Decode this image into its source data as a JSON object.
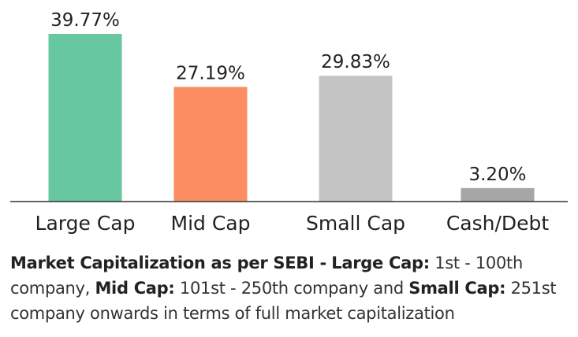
{
  "chart_data": {
    "type": "bar",
    "categories": [
      "Large Cap",
      "Mid Cap",
      "Small Cap",
      "Cash/Debt"
    ],
    "values": [
      39.77,
      27.19,
      29.83,
      3.2
    ],
    "value_labels": [
      "39.77%",
      "27.19%",
      "29.83%",
      "3.20%"
    ],
    "colors": [
      "#66c7a1",
      "#fc8d62",
      "#c4c4c4",
      "#a6a6a6"
    ],
    "ylim": [
      0,
      39.77
    ],
    "grid": false,
    "legend": "none"
  },
  "footnote": {
    "heading": "Market Capitalization as per SEBI -",
    "large_label": "Large Cap:",
    "large_text": "1st - 100th company,",
    "mid_label": "Mid Cap:",
    "mid_text": "101st - 250th company and",
    "small_label": "Small Cap:",
    "small_text": "251st company onwards in terms of full market capitalization"
  }
}
